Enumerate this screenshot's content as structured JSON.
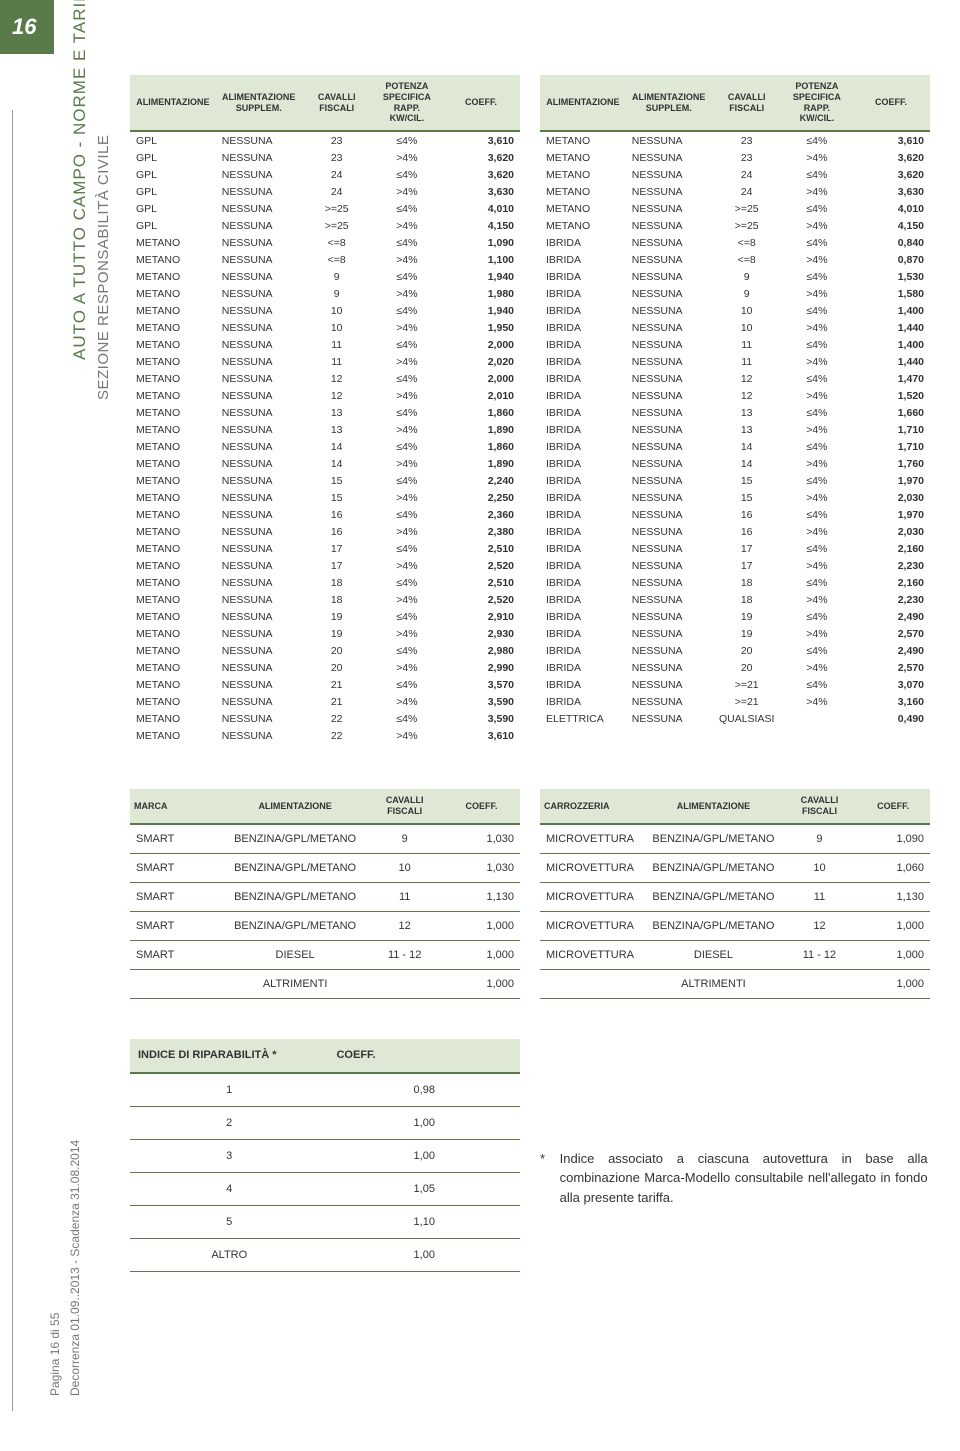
{
  "page_number": "16",
  "side": {
    "main": "AUTO A TUTTO CAMPO - NORME E TARIFFE",
    "sub": "SEZIONE RESPONSABILITÀ CIVILE",
    "footer1": "Pagina 16 di 55",
    "footer2": "Decorrenza 01.09..2013 - Scadenza 31.08.2014"
  },
  "headers": {
    "c1": "ALIMENTAZIONE",
    "c2": "ALIMENTAZIONE SUPPLEM.",
    "c3": "CAVALLI FISCALI",
    "c4": "POTENZA SPECIFICA RAPP. KW/CIL.",
    "c5": "COEFF."
  },
  "table_left": [
    [
      "GPL",
      "NESSUNA",
      "23",
      "≤4%",
      "3,610"
    ],
    [
      "GPL",
      "NESSUNA",
      "23",
      ">4%",
      "3,620"
    ],
    [
      "GPL",
      "NESSUNA",
      "24",
      "≤4%",
      "3,620"
    ],
    [
      "GPL",
      "NESSUNA",
      "24",
      ">4%",
      "3,630"
    ],
    [
      "GPL",
      "NESSUNA",
      ">=25",
      "≤4%",
      "4,010"
    ],
    [
      "GPL",
      "NESSUNA",
      ">=25",
      ">4%",
      "4,150"
    ],
    [
      "METANO",
      "NESSUNA",
      "<=8",
      "≤4%",
      "1,090"
    ],
    [
      "METANO",
      "NESSUNA",
      "<=8",
      ">4%",
      "1,100"
    ],
    [
      "METANO",
      "NESSUNA",
      "9",
      "≤4%",
      "1,940"
    ],
    [
      "METANO",
      "NESSUNA",
      "9",
      ">4%",
      "1,980"
    ],
    [
      "METANO",
      "NESSUNA",
      "10",
      "≤4%",
      "1,940"
    ],
    [
      "METANO",
      "NESSUNA",
      "10",
      ">4%",
      "1,950"
    ],
    [
      "METANO",
      "NESSUNA",
      "11",
      "≤4%",
      "2,000"
    ],
    [
      "METANO",
      "NESSUNA",
      "11",
      ">4%",
      "2,020"
    ],
    [
      "METANO",
      "NESSUNA",
      "12",
      "≤4%",
      "2,000"
    ],
    [
      "METANO",
      "NESSUNA",
      "12",
      ">4%",
      "2,010"
    ],
    [
      "METANO",
      "NESSUNA",
      "13",
      "≤4%",
      "1,860"
    ],
    [
      "METANO",
      "NESSUNA",
      "13",
      ">4%",
      "1,890"
    ],
    [
      "METANO",
      "NESSUNA",
      "14",
      "≤4%",
      "1,860"
    ],
    [
      "METANO",
      "NESSUNA",
      "14",
      ">4%",
      "1,890"
    ],
    [
      "METANO",
      "NESSUNA",
      "15",
      "≤4%",
      "2,240"
    ],
    [
      "METANO",
      "NESSUNA",
      "15",
      ">4%",
      "2,250"
    ],
    [
      "METANO",
      "NESSUNA",
      "16",
      "≤4%",
      "2,360"
    ],
    [
      "METANO",
      "NESSUNA",
      "16",
      ">4%",
      "2,380"
    ],
    [
      "METANO",
      "NESSUNA",
      "17",
      "≤4%",
      "2,510"
    ],
    [
      "METANO",
      "NESSUNA",
      "17",
      ">4%",
      "2,520"
    ],
    [
      "METANO",
      "NESSUNA",
      "18",
      "≤4%",
      "2,510"
    ],
    [
      "METANO",
      "NESSUNA",
      "18",
      ">4%",
      "2,520"
    ],
    [
      "METANO",
      "NESSUNA",
      "19",
      "≤4%",
      "2,910"
    ],
    [
      "METANO",
      "NESSUNA",
      "19",
      ">4%",
      "2,930"
    ],
    [
      "METANO",
      "NESSUNA",
      "20",
      "≤4%",
      "2,980"
    ],
    [
      "METANO",
      "NESSUNA",
      "20",
      ">4%",
      "2,990"
    ],
    [
      "METANO",
      "NESSUNA",
      "21",
      "≤4%",
      "3,570"
    ],
    [
      "METANO",
      "NESSUNA",
      "21",
      ">4%",
      "3,590"
    ],
    [
      "METANO",
      "NESSUNA",
      "22",
      "≤4%",
      "3,590"
    ],
    [
      "METANO",
      "NESSUNA",
      "22",
      ">4%",
      "3,610"
    ]
  ],
  "table_right": [
    [
      "METANO",
      "NESSUNA",
      "23",
      "≤4%",
      "3,610"
    ],
    [
      "METANO",
      "NESSUNA",
      "23",
      ">4%",
      "3,620"
    ],
    [
      "METANO",
      "NESSUNA",
      "24",
      "≤4%",
      "3,620"
    ],
    [
      "METANO",
      "NESSUNA",
      "24",
      ">4%",
      "3,630"
    ],
    [
      "METANO",
      "NESSUNA",
      ">=25",
      "≤4%",
      "4,010"
    ],
    [
      "METANO",
      "NESSUNA",
      ">=25",
      ">4%",
      "4,150"
    ],
    [
      "IBRIDA",
      "NESSUNA",
      "<=8",
      "≤4%",
      "0,840"
    ],
    [
      "IBRIDA",
      "NESSUNA",
      "<=8",
      ">4%",
      "0,870"
    ],
    [
      "IBRIDA",
      "NESSUNA",
      "9",
      "≤4%",
      "1,530"
    ],
    [
      "IBRIDA",
      "NESSUNA",
      "9",
      ">4%",
      "1,580"
    ],
    [
      "IBRIDA",
      "NESSUNA",
      "10",
      "≤4%",
      "1,400"
    ],
    [
      "IBRIDA",
      "NESSUNA",
      "10",
      ">4%",
      "1,440"
    ],
    [
      "IBRIDA",
      "NESSUNA",
      "11",
      "≤4%",
      "1,400"
    ],
    [
      "IBRIDA",
      "NESSUNA",
      "11",
      ">4%",
      "1,440"
    ],
    [
      "IBRIDA",
      "NESSUNA",
      "12",
      "≤4%",
      "1,470"
    ],
    [
      "IBRIDA",
      "NESSUNA",
      "12",
      ">4%",
      "1,520"
    ],
    [
      "IBRIDA",
      "NESSUNA",
      "13",
      "≤4%",
      "1,660"
    ],
    [
      "IBRIDA",
      "NESSUNA",
      "13",
      ">4%",
      "1,710"
    ],
    [
      "IBRIDA",
      "NESSUNA",
      "14",
      "≤4%",
      "1,710"
    ],
    [
      "IBRIDA",
      "NESSUNA",
      "14",
      ">4%",
      "1,760"
    ],
    [
      "IBRIDA",
      "NESSUNA",
      "15",
      "≤4%",
      "1,970"
    ],
    [
      "IBRIDA",
      "NESSUNA",
      "15",
      ">4%",
      "2,030"
    ],
    [
      "IBRIDA",
      "NESSUNA",
      "16",
      "≤4%",
      "1,970"
    ],
    [
      "IBRIDA",
      "NESSUNA",
      "16",
      ">4%",
      "2,030"
    ],
    [
      "IBRIDA",
      "NESSUNA",
      "17",
      "≤4%",
      "2,160"
    ],
    [
      "IBRIDA",
      "NESSUNA",
      "17",
      ">4%",
      "2,230"
    ],
    [
      "IBRIDA",
      "NESSUNA",
      "18",
      "≤4%",
      "2,160"
    ],
    [
      "IBRIDA",
      "NESSUNA",
      "18",
      ">4%",
      "2,230"
    ],
    [
      "IBRIDA",
      "NESSUNA",
      "19",
      "≤4%",
      "2,490"
    ],
    [
      "IBRIDA",
      "NESSUNA",
      "19",
      ">4%",
      "2,570"
    ],
    [
      "IBRIDA",
      "NESSUNA",
      "20",
      "≤4%",
      "2,490"
    ],
    [
      "IBRIDA",
      "NESSUNA",
      "20",
      ">4%",
      "2,570"
    ],
    [
      "IBRIDA",
      "NESSUNA",
      ">=21",
      "≤4%",
      "3,070"
    ],
    [
      "IBRIDA",
      "NESSUNA",
      ">=21",
      ">4%",
      "3,160"
    ],
    [
      "ELETTRICA",
      "NESSUNA",
      "QUALSIASI",
      "",
      "0,490"
    ]
  ],
  "marca_header": {
    "c1": "MARCA",
    "c2": "ALIMENTAZIONE",
    "c3": "CAVALLI FISCALI",
    "c4": "COEFF."
  },
  "marca_rows": [
    [
      "SMART",
      "BENZINA/GPL/METANO",
      "9",
      "1,030"
    ],
    [
      "SMART",
      "BENZINA/GPL/METANO",
      "10",
      "1,030"
    ],
    [
      "SMART",
      "BENZINA/GPL/METANO",
      "11",
      "1,130"
    ],
    [
      "SMART",
      "BENZINA/GPL/METANO",
      "12",
      "1,000"
    ],
    [
      "SMART",
      "DIESEL",
      "11 - 12",
      "1,000"
    ],
    [
      "",
      "ALTRIMENTI",
      "",
      "1,000"
    ]
  ],
  "carr_header": {
    "c1": "CARROZZERIA",
    "c2": "ALIMENTAZIONE",
    "c3": "CAVALLI FISCALI",
    "c4": "COEFF."
  },
  "carr_rows": [
    [
      "MICROVETTURA",
      "BENZINA/GPL/METANO",
      "9",
      "1,090"
    ],
    [
      "MICROVETTURA",
      "BENZINA/GPL/METANO",
      "10",
      "1,060"
    ],
    [
      "MICROVETTURA",
      "BENZINA/GPL/METANO",
      "11",
      "1,130"
    ],
    [
      "MICROVETTURA",
      "BENZINA/GPL/METANO",
      "12",
      "1,000"
    ],
    [
      "MICROVETTURA",
      "DIESEL",
      "11 - 12",
      "1,000"
    ],
    [
      "",
      "ALTRIMENTI",
      "",
      "1,000"
    ]
  ],
  "indice_header": {
    "c1": "INDICE DI RIPARABILITÀ *",
    "c2": "COEFF."
  },
  "indice_rows": [
    [
      "1",
      "0,98"
    ],
    [
      "2",
      "1,00"
    ],
    [
      "3",
      "1,00"
    ],
    [
      "4",
      "1,05"
    ],
    [
      "5",
      "1,10"
    ],
    [
      "ALTRO",
      "1,00"
    ]
  ],
  "footnote": {
    "star": "*",
    "text": "Indice associato a ciascuna autovettura in base alla combinazione Marca-Modello consultabile nell'allegato in fondo alla presente tariffa."
  },
  "colors": {
    "header_bg": "#dfe7d5",
    "accent": "#5a7a4a",
    "text": "#333333",
    "side_text": "#5a7a4a"
  }
}
